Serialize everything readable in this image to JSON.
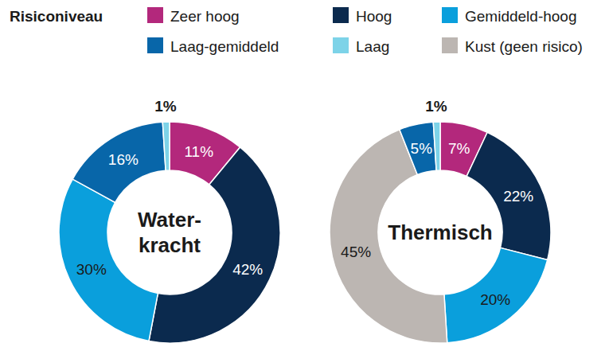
{
  "key": {
    "title": "Risiconiveau",
    "items": [
      {
        "name": "Zeer hoog",
        "color": "#b3287c"
      },
      {
        "name": "Hoog",
        "color": "#0b2a4e"
      },
      {
        "name": "Gemiddeld-hoog",
        "color": "#0a9fdc"
      },
      {
        "name": "Laag-gemiddeld",
        "color": "#0866a9"
      },
      {
        "name": "Laag",
        "color": "#7dd3e8"
      },
      {
        "name": "Kust (geen risico)",
        "color": "#bcb6b2"
      }
    ]
  },
  "chart_data": [
    {
      "type": "pie",
      "title": "Water-kracht",
      "categories": [
        "Zeer hoog",
        "Hoog",
        "Gemiddeld-hoog",
        "Laag-gemiddeld",
        "Laag"
      ],
      "values": [
        11,
        42,
        30,
        16,
        1
      ],
      "value_labels": [
        "11%",
        "42%",
        "30%",
        "16%",
        "1%"
      ],
      "colors": [
        "#b3287c",
        "#0b2a4e",
        "#0a9fdc",
        "#0866a9",
        "#7dd3e8"
      ],
      "data_labels": true
    },
    {
      "type": "pie",
      "title": "Thermisch",
      "categories": [
        "Zeer hoog",
        "Hoog",
        "Gemiddeld-hoog",
        "Kust (geen risico)",
        "Laag-gemiddeld",
        "Laag"
      ],
      "values": [
        7,
        22,
        20,
        45,
        5,
        1
      ],
      "value_labels": [
        "7%",
        "22%",
        "20%",
        "45%",
        "5%",
        "1%"
      ],
      "colors": [
        "#b3287c",
        "#0b2a4e",
        "#0a9fdc",
        "#bcb6b2",
        "#0866a9",
        "#7dd3e8"
      ],
      "data_labels": true
    }
  ]
}
